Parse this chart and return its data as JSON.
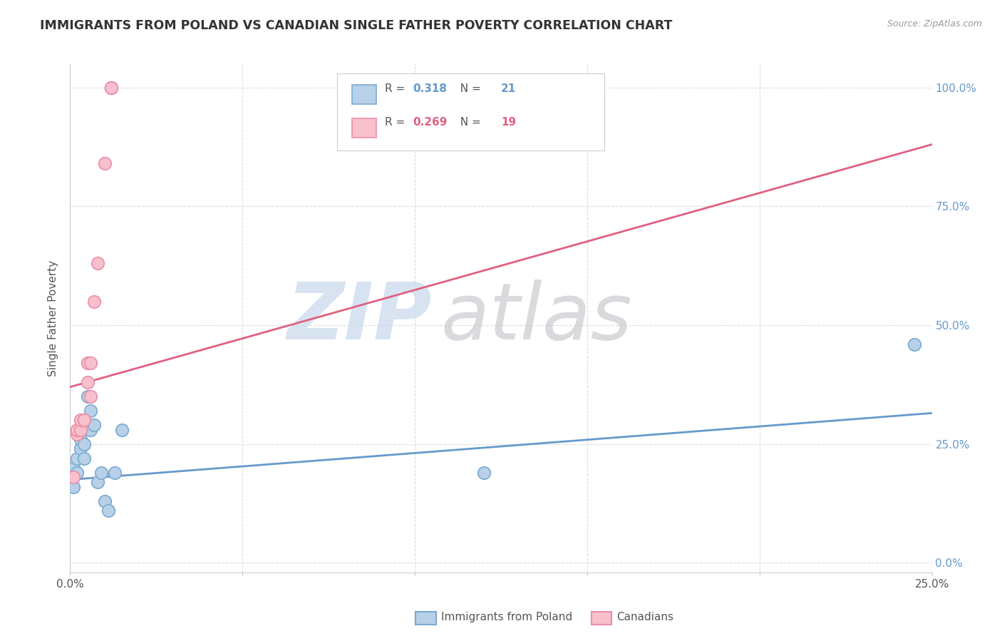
{
  "title": "IMMIGRANTS FROM POLAND VS CANADIAN SINGLE FATHER POVERTY CORRELATION CHART",
  "source": "Source: ZipAtlas.com",
  "ylabel": "Single Father Poverty",
  "legend1_r": "0.318",
  "legend1_n": "21",
  "legend2_r": "0.269",
  "legend2_n": "19",
  "legend1_label": "Immigrants from Poland",
  "legend2_label": "Canadians",
  "color_blue": "#b8d0e8",
  "color_blue_edge": "#7aaad0",
  "color_blue_line": "#6699cc",
  "color_pink": "#f8c0cc",
  "color_pink_edge": "#e890a8",
  "color_pink_line": "#e06080",
  "color_right_axis": "#6699cc",
  "xlim": [
    0.0,
    0.25
  ],
  "ylim": [
    -0.02,
    1.05
  ],
  "blue_points": [
    [
      0.001,
      0.16
    ],
    [
      0.001,
      0.18
    ],
    [
      0.001,
      0.2
    ],
    [
      0.002,
      0.19
    ],
    [
      0.002,
      0.22
    ],
    [
      0.003,
      0.24
    ],
    [
      0.003,
      0.26
    ],
    [
      0.004,
      0.22
    ],
    [
      0.004,
      0.25
    ],
    [
      0.005,
      0.35
    ],
    [
      0.006,
      0.32
    ],
    [
      0.006,
      0.28
    ],
    [
      0.007,
      0.29
    ],
    [
      0.008,
      0.17
    ],
    [
      0.009,
      0.19
    ],
    [
      0.01,
      0.13
    ],
    [
      0.011,
      0.11
    ],
    [
      0.013,
      0.19
    ],
    [
      0.015,
      0.28
    ],
    [
      0.12,
      0.19
    ],
    [
      0.245,
      0.46
    ]
  ],
  "pink_points": [
    [
      0.001,
      0.18
    ],
    [
      0.002,
      0.27
    ],
    [
      0.002,
      0.28
    ],
    [
      0.002,
      0.28
    ],
    [
      0.003,
      0.28
    ],
    [
      0.003,
      0.3
    ],
    [
      0.004,
      0.3
    ],
    [
      0.004,
      0.3
    ],
    [
      0.005,
      0.38
    ],
    [
      0.005,
      0.42
    ],
    [
      0.006,
      0.42
    ],
    [
      0.006,
      0.35
    ],
    [
      0.007,
      0.55
    ],
    [
      0.008,
      0.63
    ],
    [
      0.01,
      0.84
    ],
    [
      0.012,
      1.0
    ],
    [
      0.012,
      1.0
    ],
    [
      0.012,
      1.0
    ],
    [
      0.012,
      1.0
    ]
  ],
  "blue_trendline": [
    [
      0.0,
      0.175
    ],
    [
      0.25,
      0.315
    ]
  ],
  "pink_trendline": [
    [
      0.0,
      0.37
    ],
    [
      0.25,
      0.88
    ]
  ],
  "yticks": [
    0.0,
    0.25,
    0.5,
    0.75,
    1.0
  ],
  "ytick_labels_right": [
    "0.0%",
    "25.0%",
    "50.0%",
    "75.0%",
    "100.0%"
  ],
  "xtick_positions": [
    0.0,
    0.05,
    0.1,
    0.15,
    0.2,
    0.25
  ],
  "xtick_labels": [
    "0.0%",
    "",
    "",
    "",
    "",
    "25.0%"
  ],
  "grid_color": "#dddddd",
  "watermark_zip_color": "#c8d8ec",
  "watermark_atlas_color": "#c0c0c8"
}
